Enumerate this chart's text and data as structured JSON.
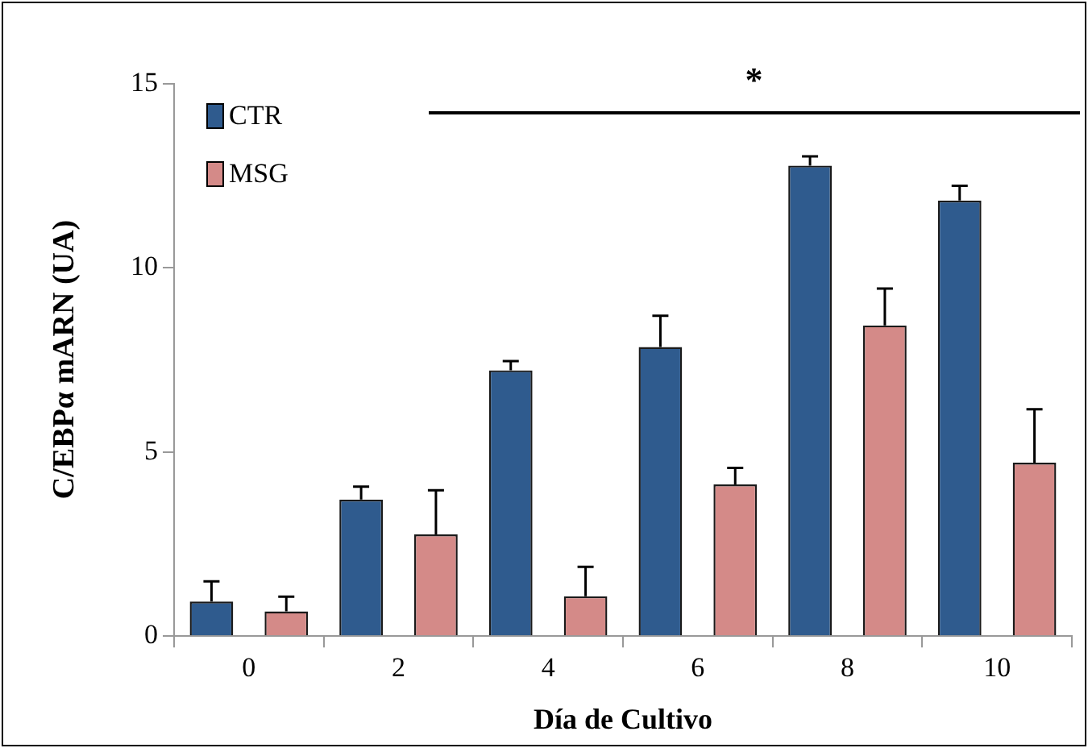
{
  "chart_data": {
    "type": "bar",
    "categories": [
      "0",
      "2",
      "4",
      "6",
      "8",
      "10"
    ],
    "xlabel": "Día de Cultivo",
    "ylabel": "C/EBPα mARN (UA)",
    "series": [
      {
        "name": "CTR",
        "color": "#2f5b8e",
        "values": [
          0.94,
          3.71,
          7.22,
          7.85,
          12.78,
          11.83
        ],
        "errors": [
          0.55,
          0.35,
          0.25,
          0.85,
          0.25,
          0.4
        ]
      },
      {
        "name": "MSG",
        "color": "#d48a88",
        "values": [
          0.67,
          2.76,
          1.08,
          4.12,
          8.44,
          4.71
        ],
        "errors": [
          0.4,
          1.2,
          0.8,
          0.45,
          1.0,
          1.45
        ]
      }
    ],
    "ylim": [
      0,
      15
    ],
    "yticks": [
      0,
      5,
      10,
      15
    ],
    "grid": false,
    "legend": "top left",
    "annotations": [
      "*"
    ]
  }
}
